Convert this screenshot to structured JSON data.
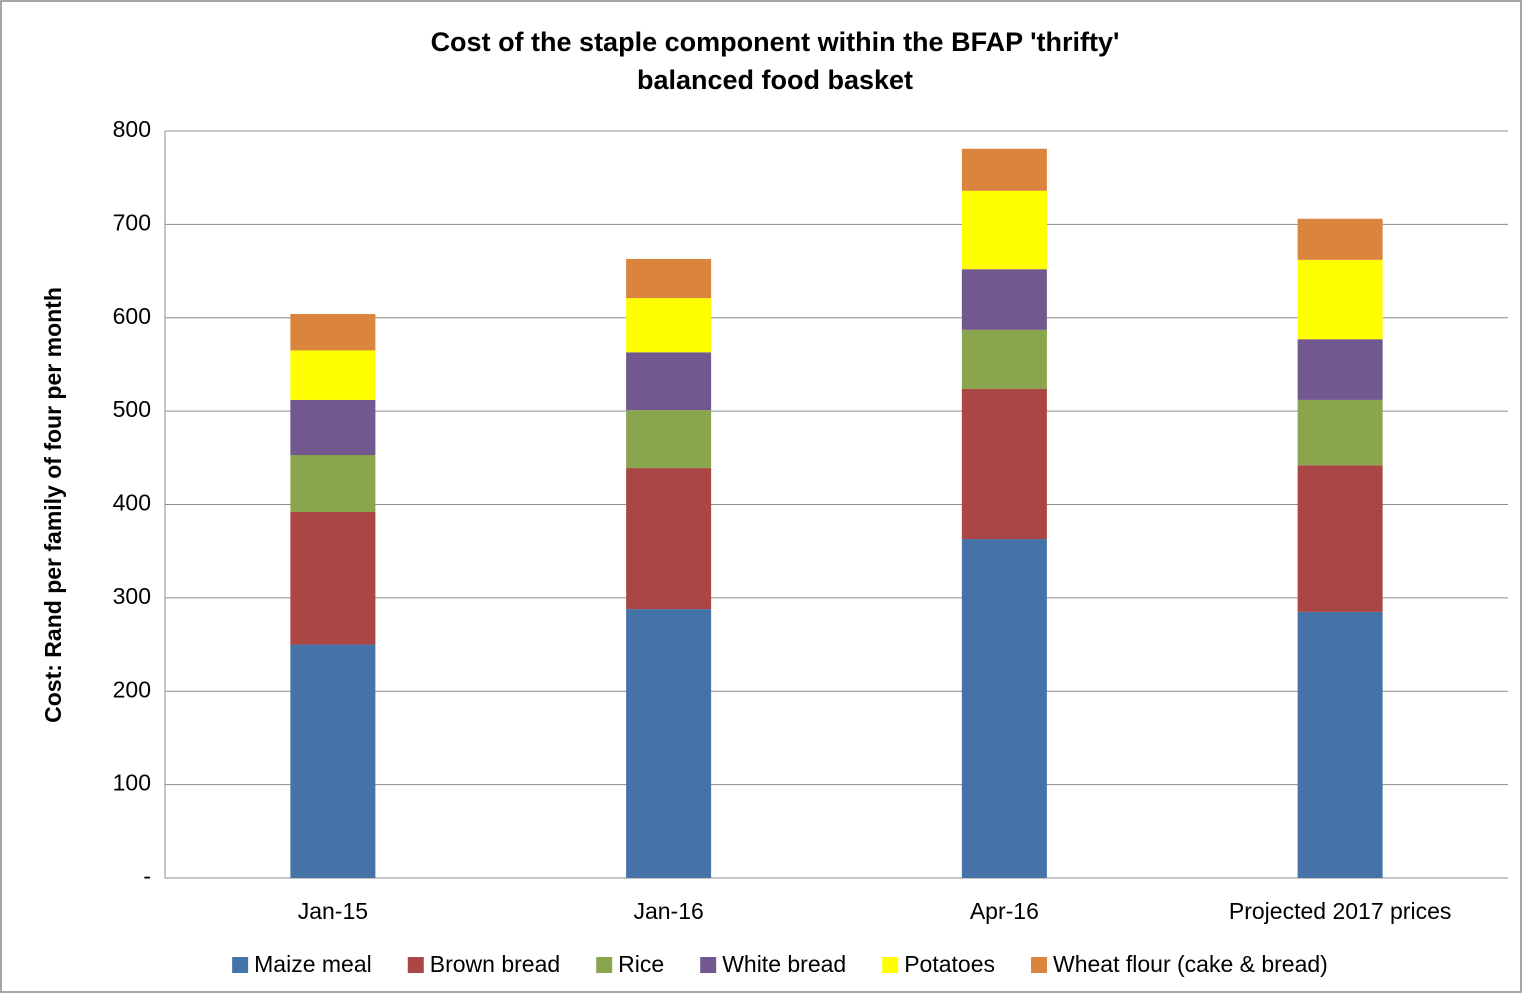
{
  "chart_data": {
    "type": "stacked_bar",
    "title": [
      "Cost of the staple component within the BFAP 'thrifty'",
      "balanced food basket"
    ],
    "y_label": "Cost: Rand per family of four per month",
    "categories": [
      "Jan-15",
      "Jan-16",
      "Apr-16",
      "Projected 2017 prices"
    ],
    "series": [
      {
        "name": "Maize meal",
        "color": "#4573a7",
        "values": [
          250,
          288,
          363,
          285
        ]
      },
      {
        "name": "Brown bread",
        "color": "#aa4643",
        "values": [
          142,
          151,
          161,
          157
        ]
      },
      {
        "name": "Rice",
        "color": "#89a54e",
        "values": [
          61,
          62,
          63,
          70
        ]
      },
      {
        "name": "White bread",
        "color": "#71588f",
        "values": [
          59,
          62,
          65,
          65
        ]
      },
      {
        "name": "Potatoes",
        "color": "#ffff00",
        "values": [
          53,
          58,
          84,
          85
        ]
      },
      {
        "name": "Wheat flour (cake & bread)",
        "color": "#db843d",
        "values": [
          39,
          42,
          45,
          44
        ]
      }
    ],
    "ylim": [
      0,
      800
    ],
    "yticks": [
      {
        "value": 0,
        "label": "-"
      },
      100,
      200,
      300,
      400,
      500,
      600,
      700,
      800
    ],
    "grid": true,
    "legend": "bottom"
  }
}
